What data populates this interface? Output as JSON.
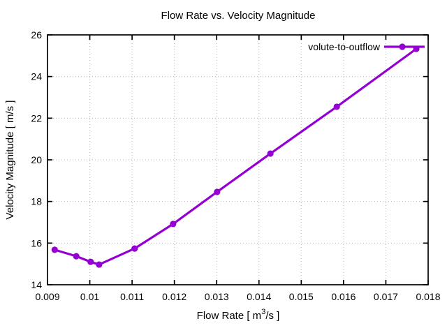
{
  "chart_data": {
    "type": "line",
    "title": "Flow Rate vs. Velocity Magnitude",
    "xlabel": "Flow Rate [ m³/s ]",
    "xlabel_parts": {
      "pre": "Flow Rate [ m",
      "sup": "3",
      "post": "/s ]"
    },
    "ylabel": "Velocity Magnitude [ m/s ]",
    "xlim": [
      0.009,
      0.018
    ],
    "ylim": [
      14,
      26
    ],
    "xticks": {
      "values": [
        0.009,
        0.01,
        0.011,
        0.012,
        0.013,
        0.014,
        0.015,
        0.016,
        0.017,
        0.018
      ],
      "labels": [
        "0.009",
        "0.01",
        "0.011",
        "0.012",
        "0.013",
        "0.014",
        "0.015",
        "0.016",
        "0.017",
        "0.018"
      ]
    },
    "yticks": {
      "values": [
        14,
        16,
        18,
        20,
        22,
        24,
        26
      ],
      "labels": [
        "14",
        "16",
        "18",
        "20",
        "22",
        "24",
        "26"
      ]
    },
    "grid": true,
    "legend_position": "top-right-inside",
    "series": [
      {
        "name": "volute-to-outflow",
        "color": "#9400d3",
        "marker": "filled-circle",
        "line_width": 3.2,
        "x": [
          0.00917,
          0.00968,
          0.01002,
          0.01022,
          0.01106,
          0.01197,
          0.01301,
          0.01427,
          0.01584,
          0.01772
        ],
        "y": [
          15.68,
          15.37,
          15.1,
          14.97,
          15.74,
          16.92,
          18.46,
          20.3,
          22.55,
          25.33
        ]
      }
    ],
    "colors": {
      "background": "#ffffff",
      "border": "#000000",
      "grid": "#b5b5b5",
      "text": "#000000"
    }
  }
}
